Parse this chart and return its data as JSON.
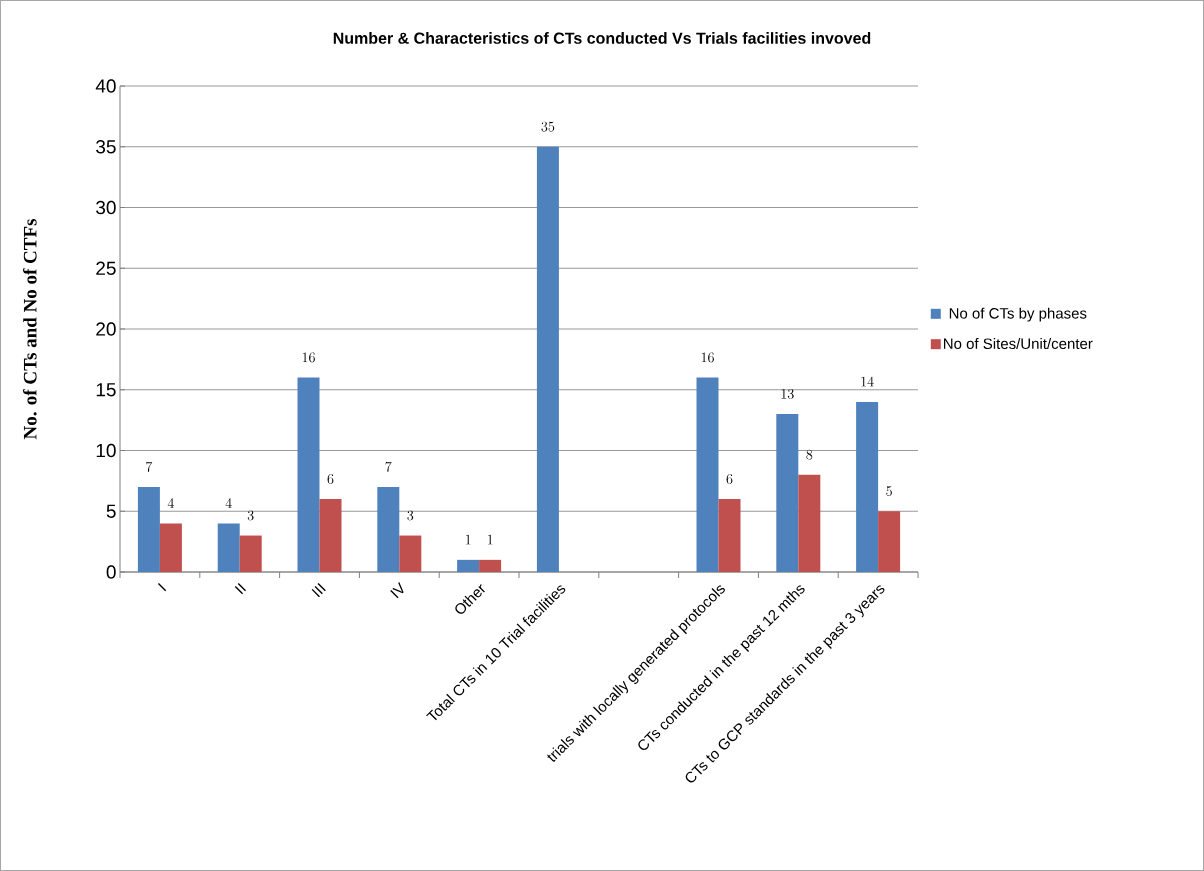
{
  "chart_data": {
    "type": "bar",
    "title": "Number & Characteristics of CTs conducted Vs Trials facilities invoved",
    "ylabel": "No. of CTs and No of CTFs",
    "categories": [
      "I",
      "II",
      "III",
      "IV",
      "Other",
      "Total CTs in 10 Trial facilities",
      null,
      "trials with locally generated protocols",
      "CTs conducted in the past 12 mths",
      "CTs to GCP standards in the past 3 years"
    ],
    "series": [
      {
        "name": "No of CTs by phases",
        "color": "#4f81bd",
        "values": [
          7,
          4,
          16,
          7,
          1,
          35,
          null,
          16,
          13,
          14
        ]
      },
      {
        "name": "No of Sites/Unit/center",
        "color": "#c0504d",
        "values": [
          4,
          3,
          6,
          3,
          1,
          null,
          null,
          6,
          8,
          5
        ]
      }
    ],
    "ylim": [
      0,
      40
    ],
    "yticks": [
      0,
      5,
      10,
      15,
      20,
      25,
      30,
      35,
      40
    ],
    "grid": "y",
    "legend": "right",
    "data_labels": true
  }
}
